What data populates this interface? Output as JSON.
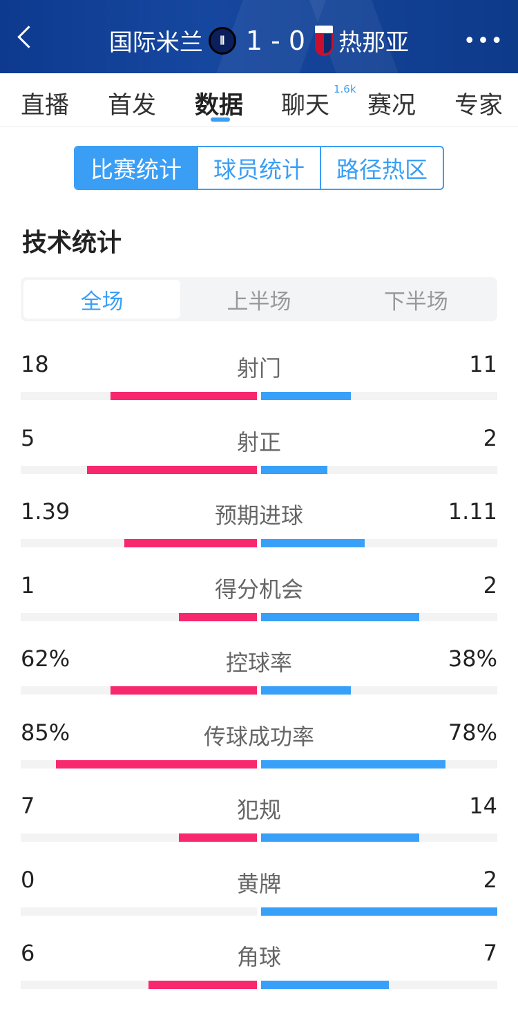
{
  "header": {
    "back_icon": "chevron-left-icon",
    "home_team": "国际米兰",
    "score": "1 - 0",
    "away_team": "热那亚",
    "more_icon": "ellipsis-icon"
  },
  "tabs": [
    {
      "label": "直播"
    },
    {
      "label": "首发"
    },
    {
      "label": "数据",
      "active": true
    },
    {
      "label": "聊天",
      "badge": "1.6k"
    },
    {
      "label": "赛况"
    },
    {
      "label": "专家"
    }
  ],
  "segments": [
    "比赛统计",
    "球员统计",
    "路径热区"
  ],
  "section_title": "技术统计",
  "periods": [
    "全场",
    "上半场",
    "下半场"
  ],
  "colors": {
    "home": "#f8286f",
    "away": "#38a0f8",
    "accent": "#3a9ef5"
  },
  "stats": [
    {
      "name": "射门",
      "home": "18",
      "away": "11",
      "home_fill": 0.62,
      "away_fill": 0.38
    },
    {
      "name": "射正",
      "home": "5",
      "away": "2",
      "home_fill": 0.72,
      "away_fill": 0.28
    },
    {
      "name": "预期进球",
      "home": "1.39",
      "away": "1.11",
      "home_fill": 0.56,
      "away_fill": 0.44
    },
    {
      "name": "得分机会",
      "home": "1",
      "away": "2",
      "home_fill": 0.33,
      "away_fill": 0.67
    },
    {
      "name": "控球率",
      "home": "62%",
      "away": "38%",
      "home_fill": 0.62,
      "away_fill": 0.38
    },
    {
      "name": "传球成功率",
      "home": "85%",
      "away": "78%",
      "home_fill": 0.85,
      "away_fill": 0.78
    },
    {
      "name": "犯规",
      "home": "7",
      "away": "14",
      "home_fill": 0.33,
      "away_fill": 0.67
    },
    {
      "name": "黄牌",
      "home": "0",
      "away": "2",
      "home_fill": 0,
      "away_fill": 1
    },
    {
      "name": "角球",
      "home": "6",
      "away": "7",
      "home_fill": 0.46,
      "away_fill": 0.54
    }
  ]
}
